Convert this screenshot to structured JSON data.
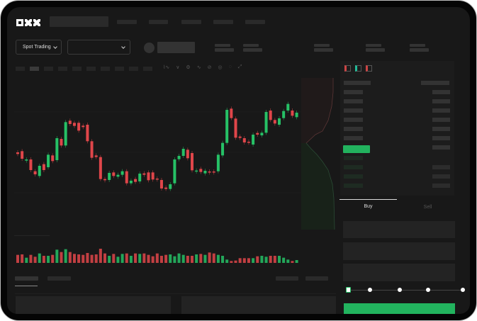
{
  "header": {
    "logo": "OKX"
  },
  "market": {
    "mode_label": "Spot Trading"
  },
  "trade": {
    "tabs": [
      {
        "label": "Buy",
        "active": true
      },
      {
        "label": "Sell",
        "active": false
      }
    ],
    "slider_percent": 0,
    "buy_button_color": "#22b35e"
  },
  "colors": {
    "up": "#26c166",
    "down": "#e0464a",
    "bg": "#181818"
  },
  "chart_data": {
    "type": "candlestick",
    "candles": [
      [
        180,
        173
      ],
      [
        185,
        153
      ],
      [
        145,
        150
      ],
      [
        150,
        105
      ],
      [
        100,
        87
      ],
      [
        80,
        123
      ],
      [
        130,
        105
      ],
      [
        117,
        170
      ],
      [
        167,
        143
      ],
      [
        147,
        240
      ],
      [
        237,
        209
      ],
      [
        209,
        308
      ],
      [
        314,
        300
      ],
      [
        305,
        292
      ],
      [
        305,
        272
      ],
      [
        293,
        287
      ],
      [
        297,
        227
      ],
      [
        227,
        157
      ],
      [
        167,
        160
      ],
      [
        160,
        67
      ],
      [
        67,
        62
      ],
      [
        63,
        93
      ],
      [
        95,
        80
      ],
      [
        77,
        85
      ],
      [
        85,
        100
      ],
      [
        100,
        49
      ],
      [
        49,
        60
      ],
      [
        67,
        55
      ],
      [
        57,
        90
      ],
      [
        91,
        85
      ],
      [
        95,
        62
      ],
      [
        95,
        65
      ],
      [
        69,
        65
      ],
      [
        63,
        27
      ],
      [
        31,
        25
      ],
      [
        25,
        45
      ],
      [
        49,
        150
      ],
      [
        151,
        165
      ],
      [
        165,
        195
      ],
      [
        191,
        155
      ],
      [
        177,
        104
      ],
      [
        99,
        103
      ],
      [
        110,
        97
      ],
      [
        91,
        102
      ],
      [
        99,
        95
      ],
      [
        99,
        95
      ],
      [
        100,
        170
      ],
      [
        167,
        220
      ],
      [
        220,
        360
      ],
      [
        365,
        325
      ],
      [
        323,
        242
      ],
      [
        247,
        241
      ],
      [
        240,
        222
      ],
      [
        225,
        221
      ],
      [
        213,
        255
      ],
      [
        262,
        255
      ],
      [
        252,
        263
      ],
      [
        263,
        351
      ],
      [
        357,
        317
      ],
      [
        317,
        302
      ],
      [
        297,
        324
      ],
      [
        325,
        355
      ],
      [
        357,
        385
      ],
      [
        357,
        335
      ],
      [
        329,
        348
      ]
    ],
    "volume": [
      34,
      36,
      22,
      34,
      26,
      40,
      30,
      30,
      34,
      56,
      46,
      58,
      46,
      38,
      36,
      34,
      42,
      34,
      36,
      60,
      40,
      30,
      38,
      26,
      38,
      40,
      30,
      40,
      38,
      40,
      34,
      28,
      40,
      30,
      34,
      36,
      28,
      40,
      34,
      30,
      30,
      36,
      38,
      34,
      44,
      40,
      34,
      30,
      14,
      8,
      10,
      20,
      20,
      20,
      20,
      28,
      30,
      26,
      30,
      30,
      30,
      22,
      14,
      8,
      12
    ]
  }
}
